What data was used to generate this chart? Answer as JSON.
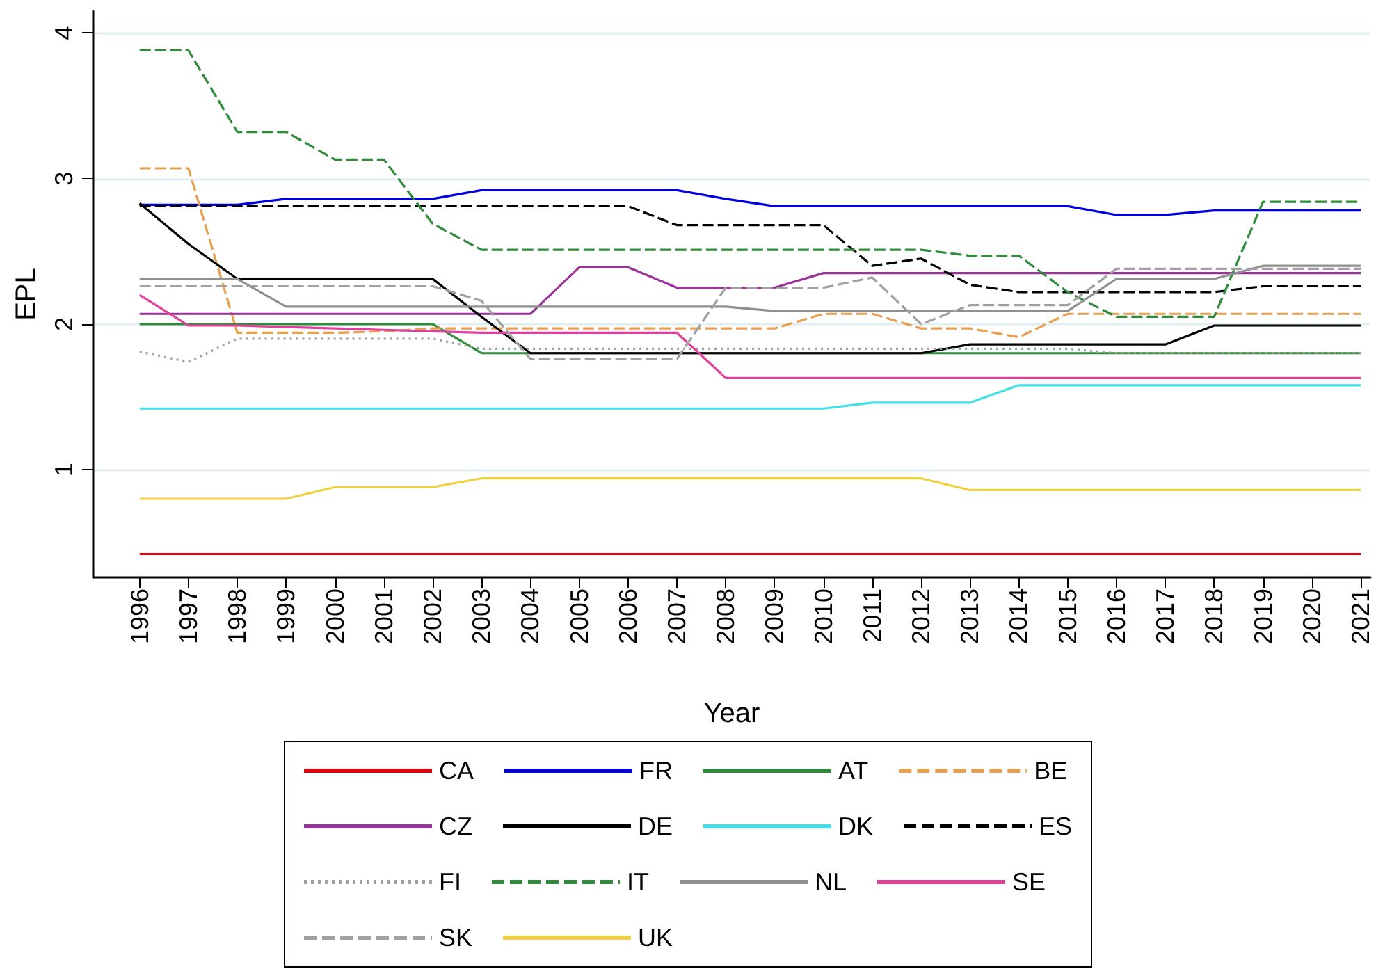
{
  "chart_data": {
    "type": "line",
    "xlabel": "Year",
    "ylabel": "EPL",
    "x": [
      1996,
      1997,
      1998,
      1999,
      2000,
      2001,
      2002,
      2003,
      2004,
      2005,
      2006,
      2007,
      2008,
      2009,
      2010,
      2011,
      2012,
      2013,
      2014,
      2015,
      2016,
      2017,
      2018,
      2019,
      2020,
      2021
    ],
    "xlim": [
      1995.05,
      2021.2
    ],
    "xticks": [
      1996,
      1997,
      1998,
      1999,
      2000,
      2001,
      2002,
      2003,
      2004,
      2005,
      2006,
      2007,
      2008,
      2009,
      2010,
      2011,
      2012,
      2013,
      2014,
      2015,
      2016,
      2017,
      2018,
      2019,
      2020,
      2021
    ],
    "ylim": [
      0.26,
      4.15
    ],
    "yticks": [
      1,
      2,
      3,
      4
    ],
    "grid": "y",
    "legend": "bottom",
    "marker": "none",
    "series": [
      {
        "name": "CA",
        "color": "#e8000b",
        "line_style": "solid",
        "values": [
          0.42,
          0.42,
          0.42,
          0.42,
          0.42,
          0.42,
          0.42,
          0.42,
          0.42,
          0.42,
          0.42,
          0.42,
          0.42,
          0.42,
          0.42,
          0.42,
          0.42,
          0.42,
          0.42,
          0.42,
          0.42,
          0.42,
          0.42,
          0.42,
          0.42,
          0.42
        ]
      },
      {
        "name": "FR",
        "color": "#0000e0",
        "line_style": "solid",
        "values": [
          2.82,
          2.82,
          2.82,
          2.86,
          2.86,
          2.86,
          2.86,
          2.92,
          2.92,
          2.92,
          2.92,
          2.92,
          2.86,
          2.81,
          2.81,
          2.81,
          2.81,
          2.81,
          2.81,
          2.81,
          2.75,
          2.75,
          2.78,
          2.78,
          2.78,
          2.78
        ]
      },
      {
        "name": "AT",
        "color": "#2e8b3a",
        "line_style": "solid",
        "values": [
          2.0,
          2.0,
          2.0,
          2.0,
          2.0,
          2.0,
          2.0,
          1.8,
          1.8,
          1.8,
          1.8,
          1.8,
          1.8,
          1.8,
          1.8,
          1.8,
          1.8,
          1.8,
          1.8,
          1.8,
          1.8,
          1.8,
          1.8,
          1.8,
          1.8,
          1.8
        ]
      },
      {
        "name": "BE",
        "color": "#e8a050",
        "line_style": "dashed",
        "values": [
          3.07,
          3.07,
          1.94,
          1.94,
          1.94,
          1.95,
          1.97,
          1.97,
          1.97,
          1.97,
          1.97,
          1.97,
          1.97,
          1.97,
          2.07,
          2.07,
          1.97,
          1.97,
          1.91,
          2.07,
          2.07,
          2.07,
          2.07,
          2.07,
          2.07,
          2.07
        ]
      },
      {
        "name": "CZ",
        "color": "#993399",
        "line_style": "solid",
        "values": [
          2.07,
          2.07,
          2.07,
          2.07,
          2.07,
          2.07,
          2.07,
          2.07,
          2.07,
          2.39,
          2.39,
          2.25,
          2.25,
          2.25,
          2.35,
          2.35,
          2.35,
          2.35,
          2.35,
          2.35,
          2.35,
          2.35,
          2.35,
          2.35,
          2.35,
          2.35
        ]
      },
      {
        "name": "DE",
        "color": "#000000",
        "line_style": "solid",
        "values": [
          2.83,
          2.55,
          2.31,
          2.31,
          2.31,
          2.31,
          2.31,
          2.05,
          1.8,
          1.8,
          1.8,
          1.8,
          1.8,
          1.8,
          1.8,
          1.8,
          1.8,
          1.86,
          1.86,
          1.86,
          1.86,
          1.86,
          1.99,
          1.99,
          1.99,
          1.99
        ]
      },
      {
        "name": "DK",
        "color": "#40e0e8",
        "line_style": "solid",
        "values": [
          1.42,
          1.42,
          1.42,
          1.42,
          1.42,
          1.42,
          1.42,
          1.42,
          1.42,
          1.42,
          1.42,
          1.42,
          1.42,
          1.42,
          1.42,
          1.46,
          1.46,
          1.46,
          1.58,
          1.58,
          1.58,
          1.58,
          1.58,
          1.58,
          1.58,
          1.58
        ]
      },
      {
        "name": "ES",
        "color": "#000000",
        "line_style": "dashed",
        "values": [
          2.81,
          2.81,
          2.81,
          2.81,
          2.81,
          2.81,
          2.81,
          2.81,
          2.81,
          2.81,
          2.81,
          2.68,
          2.68,
          2.68,
          2.68,
          2.4,
          2.45,
          2.27,
          2.22,
          2.22,
          2.22,
          2.22,
          2.22,
          2.26,
          2.26,
          2.26
        ]
      },
      {
        "name": "FI",
        "color": "#a0a0a0",
        "line_style": "dotted",
        "values": [
          1.81,
          1.74,
          1.9,
          1.9,
          1.9,
          1.9,
          1.9,
          1.83,
          1.83,
          1.83,
          1.83,
          1.83,
          1.83,
          1.83,
          1.83,
          1.83,
          1.83,
          1.83,
          1.83,
          1.83,
          1.8,
          1.8,
          1.8,
          1.8,
          1.8,
          1.8
        ]
      },
      {
        "name": "IT",
        "color": "#2e8b3a",
        "line_style": "dashed",
        "values": [
          3.88,
          3.88,
          3.32,
          3.32,
          3.13,
          3.13,
          2.69,
          2.51,
          2.51,
          2.51,
          2.51,
          2.51,
          2.51,
          2.51,
          2.51,
          2.51,
          2.51,
          2.47,
          2.47,
          2.22,
          2.05,
          2.05,
          2.05,
          2.84,
          2.84,
          2.84
        ]
      },
      {
        "name": "NL",
        "color": "#909090",
        "line_style": "solid",
        "values": [
          2.31,
          2.31,
          2.31,
          2.12,
          2.12,
          2.12,
          2.12,
          2.12,
          2.12,
          2.12,
          2.12,
          2.12,
          2.12,
          2.09,
          2.09,
          2.09,
          2.09,
          2.09,
          2.09,
          2.09,
          2.31,
          2.31,
          2.31,
          2.4,
          2.4,
          2.4
        ]
      },
      {
        "name": "SE",
        "color": "#e0409a",
        "line_style": "solid",
        "values": [
          2.2,
          1.99,
          1.99,
          1.98,
          1.97,
          1.96,
          1.95,
          1.94,
          1.94,
          1.94,
          1.94,
          1.94,
          1.63,
          1.63,
          1.63,
          1.63,
          1.63,
          1.63,
          1.63,
          1.63,
          1.63,
          1.63,
          1.63,
          1.63,
          1.63,
          1.63
        ]
      },
      {
        "name": "SK",
        "color": "#a0a0a0",
        "line_style": "dashed",
        "values": [
          2.26,
          2.26,
          2.26,
          2.26,
          2.26,
          2.26,
          2.26,
          2.16,
          1.76,
          1.76,
          1.76,
          1.76,
          2.25,
          2.25,
          2.25,
          2.32,
          2.0,
          2.13,
          2.13,
          2.13,
          2.38,
          2.38,
          2.38,
          2.38,
          2.38,
          2.38
        ]
      },
      {
        "name": "UK",
        "color": "#f0d040",
        "line_style": "solid",
        "values": [
          0.8,
          0.8,
          0.8,
          0.8,
          0.88,
          0.88,
          0.88,
          0.94,
          0.94,
          0.94,
          0.94,
          0.94,
          0.94,
          0.94,
          0.94,
          0.94,
          0.94,
          0.86,
          0.86,
          0.86,
          0.86,
          0.86,
          0.86,
          0.86,
          0.86,
          0.86
        ]
      }
    ]
  }
}
